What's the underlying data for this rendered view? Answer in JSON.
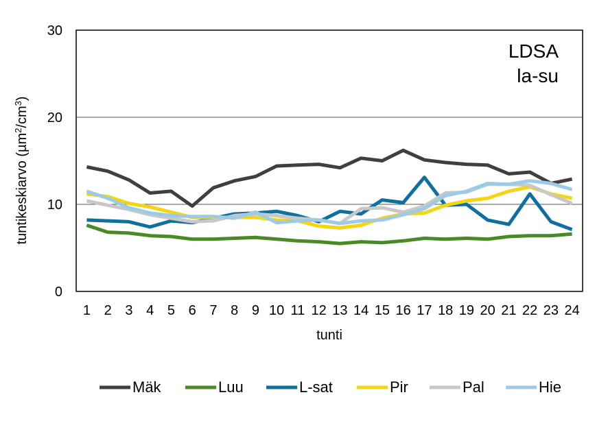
{
  "chart_data": {
    "type": "line",
    "xlabel": "tunti",
    "ylabel": "tuntikeskiarvo (µm²/cm³)",
    "ylabel_parts": {
      "base": "tuntikeskiarvo (µm",
      "sup1": "2",
      "mid": "/cm",
      "sup2": "3",
      "end": ")"
    },
    "annotation": [
      "LDSA",
      "la-su"
    ],
    "ylim": [
      0,
      30
    ],
    "yticks": [
      0,
      10,
      20,
      30
    ],
    "grid": "horizontal",
    "legend_position": "bottom",
    "x": [
      1,
      2,
      3,
      4,
      5,
      6,
      7,
      8,
      9,
      10,
      11,
      12,
      13,
      14,
      15,
      16,
      17,
      18,
      19,
      20,
      21,
      22,
      23,
      24
    ],
    "series": [
      {
        "name": "Mäk",
        "color": "#3f3f3f",
        "values": [
          14.3,
          13.8,
          12.8,
          11.3,
          11.5,
          9.8,
          11.9,
          12.7,
          13.2,
          14.4,
          14.5,
          14.6,
          14.2,
          15.3,
          15.0,
          16.2,
          15.1,
          14.8,
          14.6,
          14.5,
          13.5,
          13.7,
          12.4,
          12.9
        ]
      },
      {
        "name": "Luu",
        "color": "#4a8a25",
        "values": [
          7.6,
          6.8,
          6.7,
          6.4,
          6.3,
          6.0,
          6.0,
          6.1,
          6.2,
          6.0,
          5.8,
          5.7,
          5.5,
          5.7,
          5.6,
          5.8,
          6.1,
          6.0,
          6.1,
          6.0,
          6.3,
          6.4,
          6.4,
          6.6
        ]
      },
      {
        "name": "L-sat",
        "color": "#0f6fa0",
        "values": [
          8.2,
          8.1,
          8.0,
          7.4,
          8.1,
          7.9,
          8.4,
          8.9,
          9.0,
          9.2,
          8.7,
          8.0,
          9.2,
          8.9,
          10.5,
          10.2,
          13.1,
          9.9,
          10.0,
          8.2,
          7.7,
          11.2,
          8.0,
          7.1
        ]
      },
      {
        "name": "Pir",
        "color": "#f5d411",
        "values": [
          11.2,
          10.9,
          10.1,
          9.7,
          9.1,
          8.5,
          8.5,
          8.5,
          8.5,
          8.2,
          8.1,
          7.5,
          7.3,
          7.6,
          8.4,
          8.9,
          9.0,
          9.9,
          10.4,
          10.7,
          11.5,
          12.0,
          11.2,
          10.7
        ]
      },
      {
        "name": "Pal",
        "color": "#c8c8c8",
        "values": [
          10.4,
          9.9,
          9.4,
          8.8,
          8.4,
          8.0,
          8.1,
          8.7,
          8.9,
          8.7,
          8.4,
          8.2,
          7.8,
          9.5,
          9.6,
          9.1,
          9.8,
          11.3,
          11.4,
          12.3,
          12.3,
          12.2,
          11.1,
          10.1
        ]
      },
      {
        "name": "Hie",
        "color": "#9dcbe6",
        "values": [
          11.5,
          10.7,
          9.6,
          9.0,
          8.7,
          8.6,
          8.6,
          8.4,
          9.1,
          7.9,
          8.1,
          8.2,
          7.8,
          8.1,
          8.2,
          8.8,
          9.5,
          11.0,
          11.5,
          12.4,
          12.3,
          12.7,
          12.4,
          11.7
        ]
      }
    ]
  }
}
